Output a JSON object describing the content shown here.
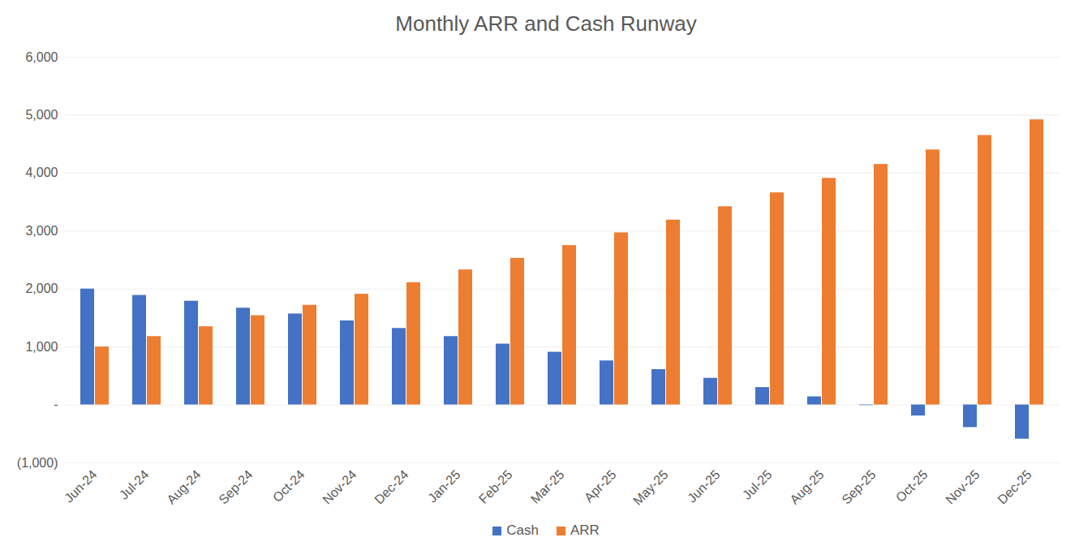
{
  "chart_data": {
    "type": "bar",
    "title": "Monthly ARR and Cash Runway",
    "categories": [
      "Jun-24",
      "Jul-24",
      "Aug-24",
      "Sep-24",
      "Oct-24",
      "Nov-24",
      "Dec-24",
      "Jan-25",
      "Feb-25",
      "Mar-25",
      "Apr-25",
      "May-25",
      "Jun-25",
      "Jul-25",
      "Aug-25",
      "Sep-25",
      "Oct-25",
      "Nov-25",
      "Dec-25"
    ],
    "series": [
      {
        "name": "Cash",
        "color": "#4472c4",
        "values": [
          2000,
          1890,
          1790,
          1670,
          1570,
          1450,
          1320,
          1180,
          1050,
          910,
          760,
          610,
          460,
          300,
          140,
          -10,
          -190,
          -390,
          -590
        ]
      },
      {
        "name": "ARR",
        "color": "#ed7d31",
        "values": [
          1000,
          1180,
          1350,
          1540,
          1720,
          1910,
          2110,
          2330,
          2530,
          2750,
          2970,
          3190,
          3420,
          3660,
          3910,
          4150,
          4400,
          4650,
          4920
        ]
      }
    ],
    "ylim": [
      -1000,
      6000
    ],
    "yticks": [
      {
        "value": -1000,
        "label": "(1,000)"
      },
      {
        "value": 0,
        "label": "-"
      },
      {
        "value": 1000,
        "label": "1,000"
      },
      {
        "value": 2000,
        "label": "2,000"
      },
      {
        "value": 3000,
        "label": "3,000"
      },
      {
        "value": 4000,
        "label": "4,000"
      },
      {
        "value": 5000,
        "label": "5,000"
      },
      {
        "value": 6000,
        "label": "6,000"
      }
    ],
    "grid": true,
    "legend": "bottom"
  }
}
